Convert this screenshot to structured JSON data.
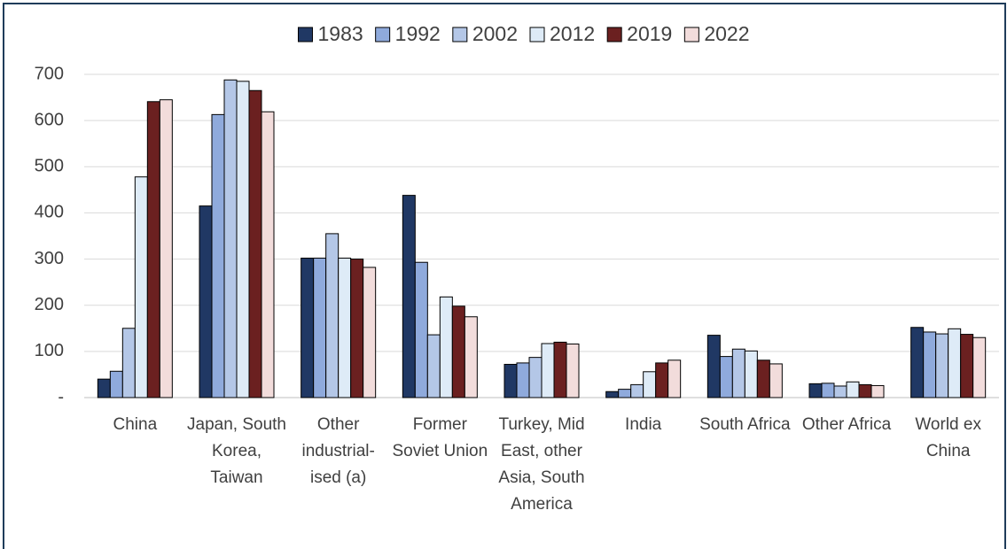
{
  "chart_data": {
    "type": "bar",
    "categories": [
      "China",
      "Japan, South Korea, Taiwan",
      "Other industrial-ised (a)",
      "Former Soviet Union",
      "Turkey, Mid East, other Asia, South America",
      "India",
      "South Africa",
      "Other Africa",
      "World ex China"
    ],
    "series": [
      {
        "name": "1983",
        "color": "#203864",
        "values": [
          40,
          415,
          302,
          438,
          72,
          13,
          135,
          30,
          152
        ]
      },
      {
        "name": "1992",
        "color": "#8faadc",
        "values": [
          57,
          613,
          302,
          293,
          75,
          18,
          89,
          31,
          142
        ]
      },
      {
        "name": "2002",
        "color": "#b4c7e7",
        "values": [
          150,
          688,
          355,
          136,
          87,
          28,
          105,
          25,
          138
        ]
      },
      {
        "name": "2012",
        "color": "#deebf7",
        "values": [
          478,
          685,
          302,
          218,
          117,
          56,
          101,
          34,
          149
        ]
      },
      {
        "name": "2019",
        "color": "#6b2020",
        "values": [
          641,
          665,
          300,
          198,
          120,
          75,
          81,
          28,
          137
        ]
      },
      {
        "name": "2022",
        "color": "#f2dcdb",
        "values": [
          645,
          619,
          282,
          175,
          116,
          81,
          73,
          26,
          130
        ]
      }
    ],
    "ylim": [
      0,
      700
    ],
    "yticks": [
      {
        "value": 0,
        "label": "-"
      },
      100,
      200,
      300,
      400,
      500,
      600,
      700
    ],
    "grid": true
  }
}
